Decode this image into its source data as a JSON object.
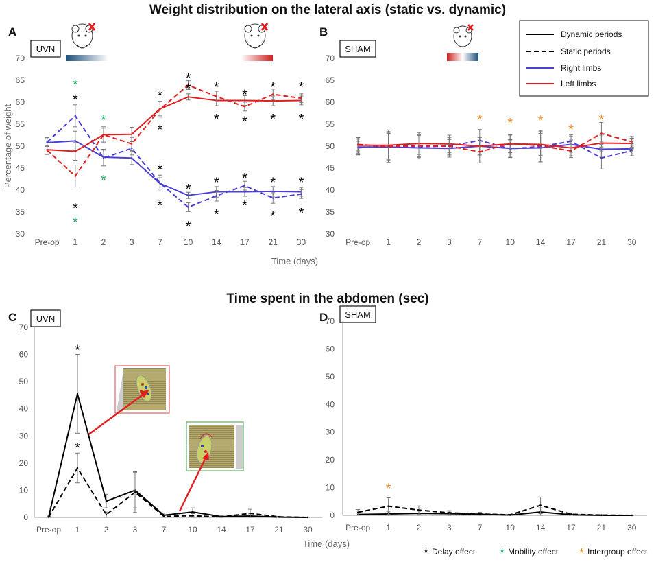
{
  "titles": {
    "top": "Weight distribution on the lateral axis (static vs. dynamic)",
    "bottom": "Time spent in the abdomen (sec)"
  },
  "panel_labels": {
    "a": "A",
    "b": "B",
    "c": "C",
    "d": "D"
  },
  "group_labels": {
    "a": "UVN",
    "b": "SHAM",
    "c": "UVN",
    "d": "SHAM"
  },
  "legend": {
    "items": [
      {
        "label": "Dynamic periods",
        "color": "#000000",
        "dash": false
      },
      {
        "label": "Static periods",
        "color": "#000000",
        "dash": true
      },
      {
        "label": "Right limbs",
        "color": "#4b3fd6",
        "dash": false
      },
      {
        "label": "Left limbs",
        "color": "#e02020",
        "dash": false
      }
    ]
  },
  "footer_legend": {
    "delay": {
      "label": "Delay effect",
      "color": "#000000"
    },
    "mobility": {
      "label": "Mobility effect",
      "color": "#22aa66"
    },
    "intergroup": {
      "label": "Intergroup effect",
      "color": "#f0932b"
    }
  },
  "colors": {
    "right": "#4b3fd6",
    "left": "#e02020",
    "black": "#000000",
    "green": "#22aa66",
    "orange": "#f0932b",
    "error": "#777777"
  },
  "chart_data": [
    {
      "id": "A",
      "type": "line",
      "title": "Weight distribution on the lateral axis (static vs. dynamic) — UVN",
      "categories": [
        "Pre-op",
        "1",
        "2",
        "3",
        "7",
        "10",
        "14",
        "17",
        "21",
        "30"
      ],
      "xlabel": "Time (days)",
      "ylabel": "Percentage of weight",
      "ylim": [
        30,
        70
      ],
      "yticks": [
        30,
        35,
        40,
        45,
        50,
        55,
        60,
        65,
        70
      ],
      "series": [
        {
          "name": "Right limbs – Dynamic",
          "color": "#4b3fd6",
          "dash": false,
          "values": [
            50.8,
            51.2,
            47.5,
            47.3,
            41.5,
            38.8,
            39.6,
            39.6,
            39.7,
            39.6
          ],
          "errors": [
            1.2,
            2.2,
            1.8,
            1.5,
            1.3,
            0.7,
            1.2,
            1.0,
            1.1,
            1.0
          ]
        },
        {
          "name": "Right limbs – Static",
          "color": "#4b3fd6",
          "dash": true,
          "values": [
            50.9,
            56.9,
            47.3,
            49.5,
            41.6,
            36.1,
            38.7,
            41.0,
            38.2,
            39.1
          ],
          "errors": [
            1.0,
            2.5,
            1.8,
            1.5,
            1.8,
            1.0,
            1.2,
            1.0,
            1.2,
            1.0
          ]
        },
        {
          "name": "Left limbs – Dynamic",
          "color": "#e02020",
          "dash": false,
          "values": [
            49.2,
            48.8,
            52.6,
            52.7,
            58.5,
            61.2,
            60.4,
            60.4,
            60.3,
            60.4
          ],
          "errors": [
            1.0,
            2.0,
            1.5,
            1.6,
            1.6,
            0.7,
            1.2,
            1.1,
            1.1,
            1.0
          ]
        },
        {
          "name": "Left limbs – Static",
          "color": "#e02020",
          "dash": true,
          "values": [
            49.1,
            43.2,
            52.6,
            50.5,
            58.4,
            63.9,
            61.3,
            59.0,
            61.8,
            60.9
          ],
          "errors": [
            1.0,
            2.5,
            1.8,
            1.5,
            1.8,
            1.0,
            1.2,
            1.0,
            1.2,
            1.0
          ]
        }
      ],
      "annotations": [
        {
          "x": "1",
          "y": 64.5,
          "text": "*",
          "color": "#22aa66"
        },
        {
          "x": "1",
          "y": 61.2,
          "text": "*",
          "color": "#000000"
        },
        {
          "x": "1",
          "y": 36.4,
          "text": "*",
          "color": "#000000"
        },
        {
          "x": "1",
          "y": 33.2,
          "text": "*",
          "color": "#22aa66"
        },
        {
          "x": "2",
          "y": 56.5,
          "text": "*",
          "color": "#22aa66"
        },
        {
          "x": "2",
          "y": 42.8,
          "text": "*",
          "color": "#22aa66"
        },
        {
          "x": "7",
          "y": 62.0,
          "text": "*",
          "color": "#000000"
        },
        {
          "x": "7",
          "y": 54.3,
          "text": "*",
          "color": "#000000"
        },
        {
          "x": "7",
          "y": 45.2,
          "text": "*",
          "color": "#000000"
        },
        {
          "x": "7",
          "y": 37.0,
          "text": "*",
          "color": "#000000"
        },
        {
          "x": "10",
          "y": 66.0,
          "text": "*",
          "color": "#000000"
        },
        {
          "x": "10",
          "y": 63.7,
          "text": "*",
          "color": "#000000"
        },
        {
          "x": "10",
          "y": 40.8,
          "text": "*",
          "color": "#000000"
        },
        {
          "x": "10",
          "y": 32.3,
          "text": "*",
          "color": "#000000"
        },
        {
          "x": "14",
          "y": 64.0,
          "text": "*",
          "color": "#000000"
        },
        {
          "x": "14",
          "y": 56.7,
          "text": "*",
          "color": "#000000"
        },
        {
          "x": "14",
          "y": 42.3,
          "text": "*",
          "color": "#000000"
        },
        {
          "x": "14",
          "y": 35.0,
          "text": "*",
          "color": "#000000"
        },
        {
          "x": "17",
          "y": 62.3,
          "text": "*",
          "color": "#000000"
        },
        {
          "x": "17",
          "y": 56.2,
          "text": "*",
          "color": "#000000"
        },
        {
          "x": "17",
          "y": 43.3,
          "text": "*",
          "color": "#000000"
        },
        {
          "x": "17",
          "y": 37.0,
          "text": "*",
          "color": "#000000"
        },
        {
          "x": "21",
          "y": 64.0,
          "text": "*",
          "color": "#000000"
        },
        {
          "x": "21",
          "y": 56.7,
          "text": "*",
          "color": "#000000"
        },
        {
          "x": "21",
          "y": 42.3,
          "text": "*",
          "color": "#000000"
        },
        {
          "x": "21",
          "y": 34.6,
          "text": "*",
          "color": "#000000"
        },
        {
          "x": "30",
          "y": 64.0,
          "text": "*",
          "color": "#000000"
        },
        {
          "x": "30",
          "y": 56.7,
          "text": "*",
          "color": "#000000"
        },
        {
          "x": "30",
          "y": 42.3,
          "text": "*",
          "color": "#000000"
        },
        {
          "x": "30",
          "y": 35.3,
          "text": "*",
          "color": "#000000"
        }
      ]
    },
    {
      "id": "B",
      "type": "line",
      "title": "Weight distribution on the lateral axis (static vs. dynamic) — SHAM",
      "categories": [
        "Pre-op",
        "1",
        "2",
        "3",
        "7",
        "10",
        "14",
        "17",
        "21",
        "30"
      ],
      "xlabel": "",
      "ylabel": "",
      "ylim": [
        30,
        70
      ],
      "yticks": [
        30,
        35,
        40,
        45,
        50,
        55,
        60,
        65,
        70
      ],
      "series": [
        {
          "name": "Right limbs – Dynamic",
          "color": "#4b3fd6",
          "dash": false,
          "values": [
            49.8,
            49.8,
            49.6,
            49.5,
            50.0,
            49.5,
            49.6,
            50.4,
            49.3,
            49.4
          ],
          "errors": [
            1.8,
            3.5,
            2.5,
            2.0,
            2.0,
            2.0,
            2.5,
            1.8,
            1.8,
            1.2
          ]
        },
        {
          "name": "Right limbs – Static",
          "color": "#4b3fd6",
          "dash": true,
          "values": [
            49.6,
            50.1,
            49.9,
            50.0,
            51.3,
            49.4,
            49.9,
            51.1,
            47.3,
            49.0
          ],
          "errors": [
            1.5,
            3.0,
            2.5,
            2.0,
            2.5,
            2.0,
            3.5,
            1.5,
            2.5,
            1.2
          ]
        },
        {
          "name": "Left limbs – Dynamic",
          "color": "#e02020",
          "dash": false,
          "values": [
            50.2,
            50.2,
            50.6,
            50.5,
            50.0,
            50.5,
            50.4,
            49.6,
            50.7,
            50.6
          ],
          "errors": [
            1.8,
            3.5,
            2.5,
            2.0,
            2.0,
            2.0,
            2.5,
            1.8,
            1.8,
            1.2
          ]
        },
        {
          "name": "Left limbs – Static",
          "color": "#e02020",
          "dash": true,
          "values": [
            50.4,
            49.9,
            50.1,
            50.0,
            48.7,
            50.6,
            50.1,
            48.9,
            52.9,
            51.0
          ],
          "errors": [
            1.5,
            3.0,
            2.5,
            2.0,
            2.5,
            2.0,
            3.5,
            1.5,
            2.5,
            1.2
          ]
        }
      ],
      "annotations": [
        {
          "x": "7",
          "y": 56.6,
          "text": "*",
          "color": "#f0932b"
        },
        {
          "x": "10",
          "y": 55.8,
          "text": "*",
          "color": "#f0932b"
        },
        {
          "x": "14",
          "y": 56.3,
          "text": "*",
          "color": "#f0932b"
        },
        {
          "x": "17",
          "y": 54.3,
          "text": "*",
          "color": "#f0932b"
        },
        {
          "x": "21",
          "y": 56.6,
          "text": "*",
          "color": "#f0932b"
        }
      ]
    },
    {
      "id": "C",
      "type": "line",
      "title": "Time spent in the abdomen (sec) — UVN",
      "categories": [
        "Pre-op",
        "1",
        "2",
        "3",
        "7",
        "10",
        "14",
        "17",
        "21",
        "30"
      ],
      "xlabel": "Time (days)",
      "ylabel": "",
      "ylim": [
        0,
        70
      ],
      "yticks": [
        0,
        10,
        20,
        30,
        40,
        50,
        60,
        70
      ],
      "series": [
        {
          "name": "Dynamic periods",
          "color": "#000000",
          "dash": false,
          "values": [
            0.2,
            45.5,
            6.0,
            10.0,
            0.8,
            2.0,
            0.3,
            0.5,
            0.1,
            0.0
          ],
          "errors": [
            0.3,
            14.5,
            2.5,
            6.5,
            0.8,
            1.5,
            0.3,
            0.8,
            0.1,
            0.1
          ]
        },
        {
          "name": "Static periods",
          "color": "#000000",
          "dash": true,
          "values": [
            0.1,
            18.2,
            1.0,
            9.3,
            0.4,
            0.6,
            0.2,
            1.5,
            0.2,
            0.0
          ],
          "errors": [
            0.2,
            5.5,
            1.0,
            7.5,
            0.5,
            0.8,
            0.3,
            1.5,
            0.2,
            0.1
          ]
        }
      ],
      "annotations": [
        {
          "x": "1",
          "y": 62.5,
          "text": "*",
          "color": "#000000"
        },
        {
          "x": "1",
          "y": 26.5,
          "text": "*",
          "color": "#000000"
        }
      ]
    },
    {
      "id": "D",
      "type": "line",
      "title": "Time spent in the abdomen (sec) — SHAM",
      "categories": [
        "Pre-op",
        "1",
        "2",
        "3",
        "7",
        "10",
        "14",
        "17",
        "21",
        "30"
      ],
      "xlabel": "",
      "ylabel": "",
      "ylim": [
        0,
        70
      ],
      "yticks": [
        0,
        10,
        20,
        30,
        40,
        50,
        60,
        70
      ],
      "series": [
        {
          "name": "Dynamic periods",
          "color": "#000000",
          "dash": false,
          "values": [
            0.3,
            0.5,
            0.7,
            0.6,
            0.4,
            0.1,
            1.2,
            0.2,
            0.0,
            0.0
          ],
          "errors": [
            0.5,
            0.8,
            0.8,
            0.6,
            0.5,
            0.2,
            1.5,
            0.3,
            0.1,
            0.1
          ]
        },
        {
          "name": "Static periods",
          "color": "#000000",
          "dash": true,
          "values": [
            1.1,
            3.3,
            1.9,
            0.9,
            0.5,
            0.2,
            3.6,
            0.4,
            0.1,
            0.0
          ],
          "errors": [
            1.0,
            3.0,
            1.5,
            0.8,
            0.6,
            0.2,
            3.0,
            0.5,
            0.1,
            0.1
          ]
        }
      ],
      "annotations": [
        {
          "x": "1",
          "y": 10.5,
          "text": "*",
          "color": "#f0932b"
        }
      ]
    }
  ]
}
